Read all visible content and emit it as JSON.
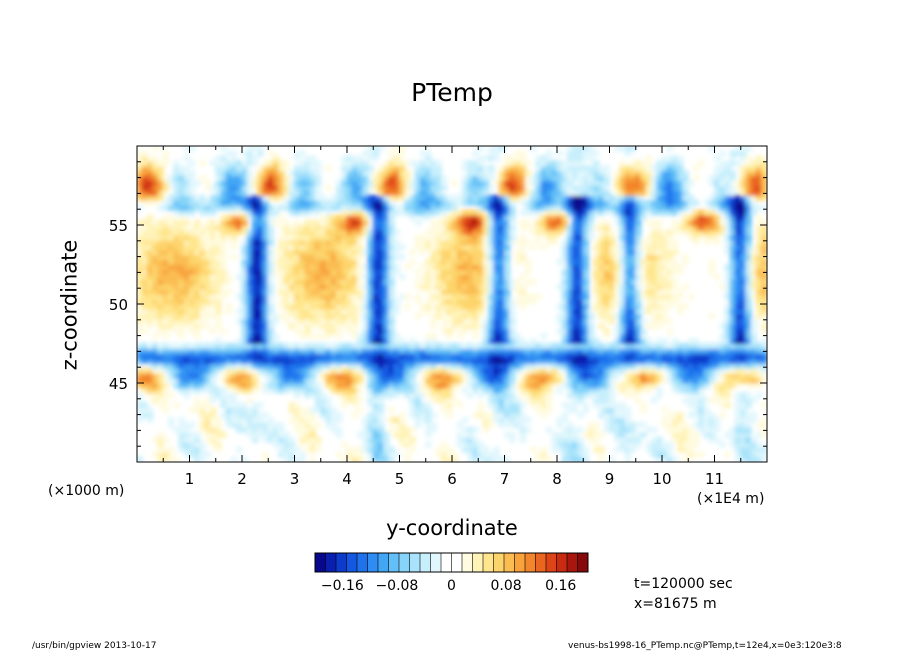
{
  "chart_data": {
    "type": "heatmap",
    "title": "PTemp",
    "xlabel": "y-coordinate",
    "ylabel": "z-coordinate",
    "x_scale_note": "(×1000 m)",
    "x_unit_note": "(×1E4 m)",
    "xlim": [
      0,
      12
    ],
    "ylim": [
      40,
      60
    ],
    "x_ticks": [
      "1",
      "2",
      "3",
      "4",
      "5",
      "6",
      "7",
      "8",
      "9",
      "10",
      "11"
    ],
    "y_ticks": [
      "45",
      "50",
      "55"
    ],
    "colorbar": {
      "ticks": [
        "−0.16",
        "−0.08",
        "0",
        "0.08",
        "0.16"
      ],
      "range": [
        -0.2,
        0.2
      ],
      "colors": [
        "#08088e",
        "#0a1fb0",
        "#0d3ccc",
        "#1457e0",
        "#1f72ec",
        "#2e8cf2",
        "#43a6f5",
        "#62bff7",
        "#86d4f9",
        "#a9e3fb",
        "#c8effc",
        "#e2f7fd",
        "#ffffff",
        "#ffffff",
        "#fffbe0",
        "#fff3b8",
        "#ffe68e",
        "#fdd46c",
        "#fbbd52",
        "#f8a23c",
        "#f3852c",
        "#ea6520",
        "#dd4518",
        "#c82a12",
        "#a9160e",
        "#85090a"
      ]
    },
    "annotations": {
      "time": "t=120000 sec",
      "xpos": "x=81675 m"
    },
    "structure": {
      "upper_stable_layer_z": [
        56,
        59
      ],
      "lower_stable_layer_z": [
        45,
        48
      ],
      "convective_layer_z": [
        48,
        56
      ],
      "downdraft_y": [
        2.3,
        4.6,
        6.9,
        8.4,
        9.4,
        11.5
      ],
      "updraft_y": [
        2.0,
        4.2,
        6.4,
        8.0,
        10.8
      ]
    }
  },
  "footer": {
    "left": "/usr/bin/gpview   2013-10-17",
    "right": "venus-bs1998-16_PTemp.nc@PTemp,t=12e4,x=0e3:120e3:8"
  }
}
